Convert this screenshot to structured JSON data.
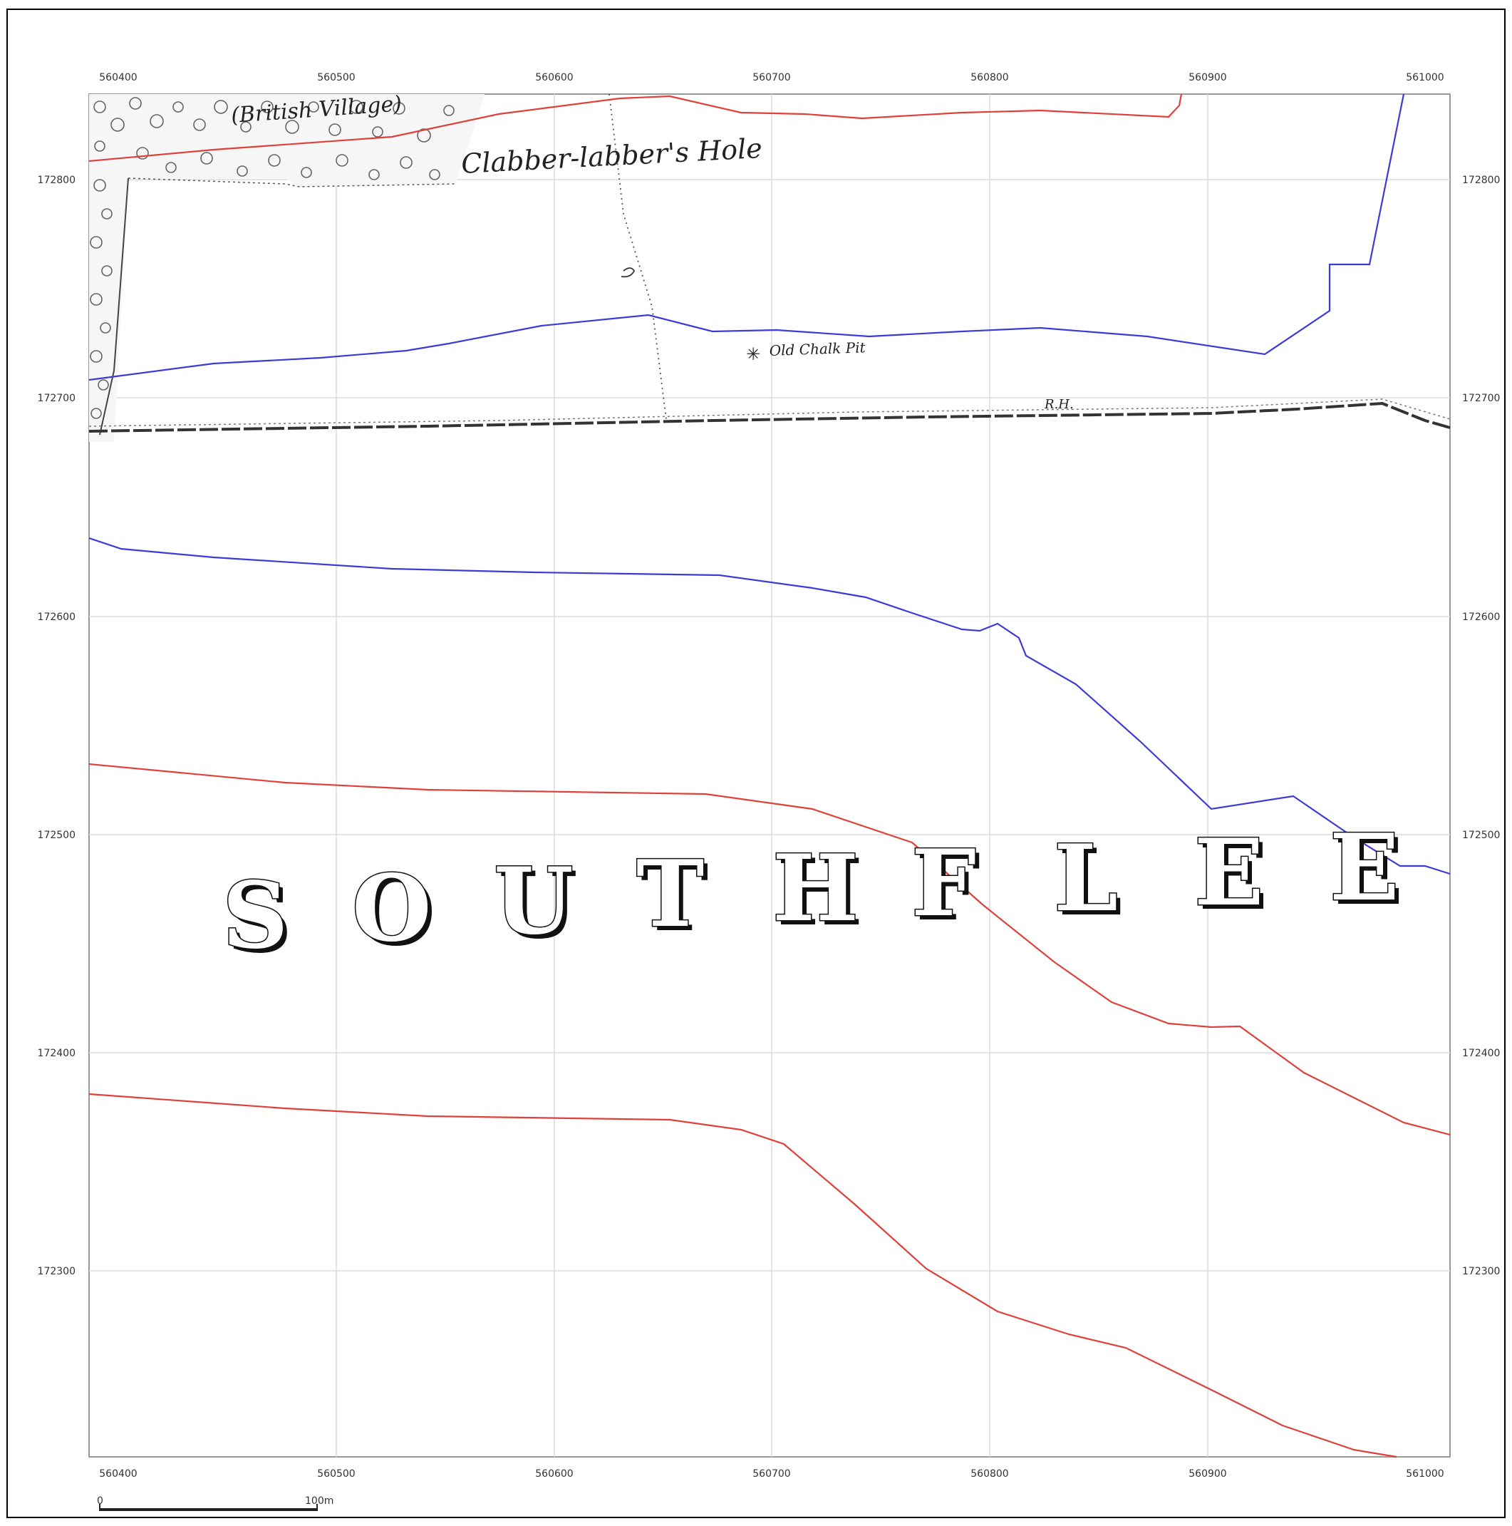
{
  "map": {
    "x_ticks": [
      "560400",
      "560500",
      "560600",
      "560700",
      "560800",
      "560900",
      "561000"
    ],
    "y_ticks": [
      "172800",
      "172700",
      "172600",
      "172500",
      "172400",
      "172300"
    ],
    "colors": {
      "red_line": "#e0403a",
      "blue_line": "#3b3bd8",
      "grid": "#dcdcdc",
      "ink": "#222222"
    },
    "labels": {
      "british_village": "(British Village)",
      "clabberlabbers_hole": "Clabber-labber's Hole",
      "old_chalk_pit": "Old Chalk Pit",
      "rh": "R.H.",
      "southfleet": [
        "S",
        "O",
        "U",
        "T",
        "H",
        "F",
        "L",
        "E",
        "E"
      ]
    },
    "scale_bar": {
      "start": "0",
      "end": "100m"
    },
    "icons": {
      "chalk_pit": "asterisk-icon"
    }
  }
}
